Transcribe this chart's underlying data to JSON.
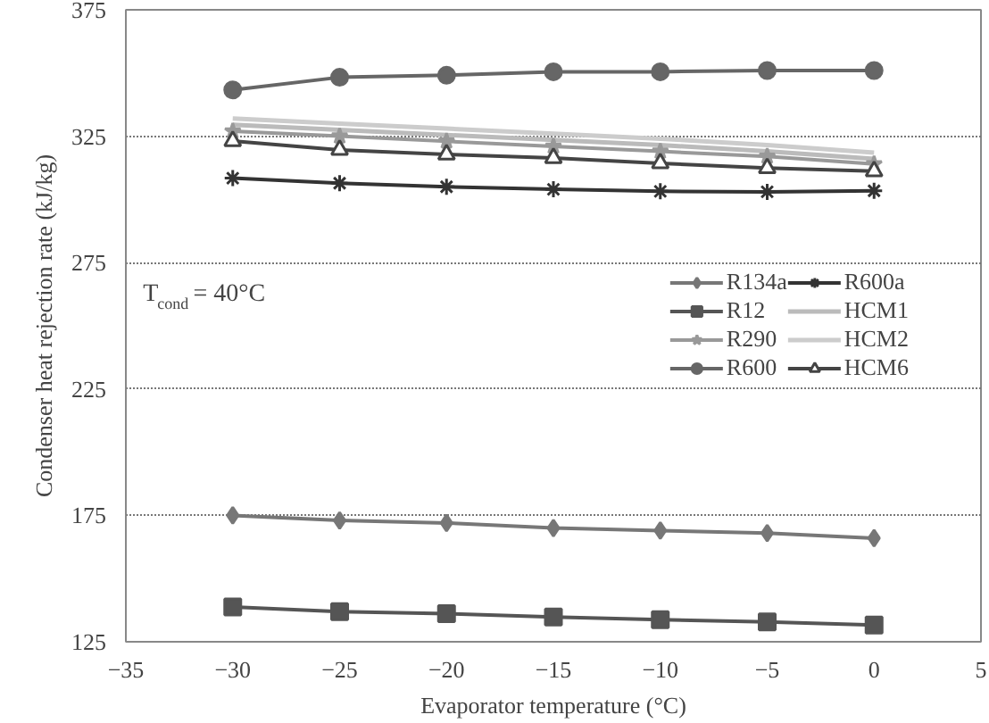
{
  "chart_data": {
    "type": "line",
    "xlabel": "Evaporator temperature (°C)",
    "ylabel": "Condenser heat rejection rate (kJ/kg)",
    "x": [
      -30,
      -25,
      -20,
      -15,
      -10,
      -5,
      0
    ],
    "xlim": [
      -35,
      5
    ],
    "xticks": [
      -35,
      -30,
      -25,
      -20,
      -15,
      -10,
      -5,
      0,
      5
    ],
    "ylim": [
      125,
      375
    ],
    "yticks": [
      125,
      175,
      225,
      275,
      325,
      375
    ],
    "grid": "y",
    "legend": "right",
    "line_style": "solid",
    "annotations": [
      "T$_{cond}$ = 40°C"
    ],
    "series": [
      {
        "name": "R134a",
        "color": "#777777",
        "marker": "diamond",
        "values": [
          175,
          173,
          172,
          170,
          169,
          168,
          166
        ]
      },
      {
        "name": "R12",
        "color": "#555555",
        "marker": "square",
        "values": [
          138.8,
          136.9,
          136.1,
          134.8,
          133.7,
          132.9,
          131.6
        ]
      },
      {
        "name": "R290",
        "color": "#999999",
        "marker": "star",
        "values": [
          327,
          325,
          323,
          321,
          319,
          317,
          314
        ]
      },
      {
        "name": "R600",
        "color": "#666666",
        "marker": "circle",
        "values": [
          343.3,
          348.3,
          349.1,
          350.5,
          350.5,
          351,
          351
        ]
      },
      {
        "name": "R600a",
        "color": "#333333",
        "marker": "cross",
        "values": [
          308.4,
          306.4,
          305,
          304,
          303.2,
          303,
          303.4
        ]
      },
      {
        "name": "HCM1",
        "color": "#bbbbbb",
        "marker": "none",
        "values": [
          329.5,
          327.5,
          325.5,
          323.5,
          321.5,
          319,
          316
        ]
      },
      {
        "name": "HCM2",
        "color": "#cccccc",
        "marker": "none",
        "values": [
          332,
          330,
          328,
          326,
          324,
          321.5,
          318.5
        ]
      },
      {
        "name": "HCM6",
        "color": "#444444",
        "marker": "triangle",
        "values": [
          323.1,
          319.6,
          317.8,
          316.4,
          314.3,
          312.4,
          311.2
        ]
      }
    ]
  }
}
